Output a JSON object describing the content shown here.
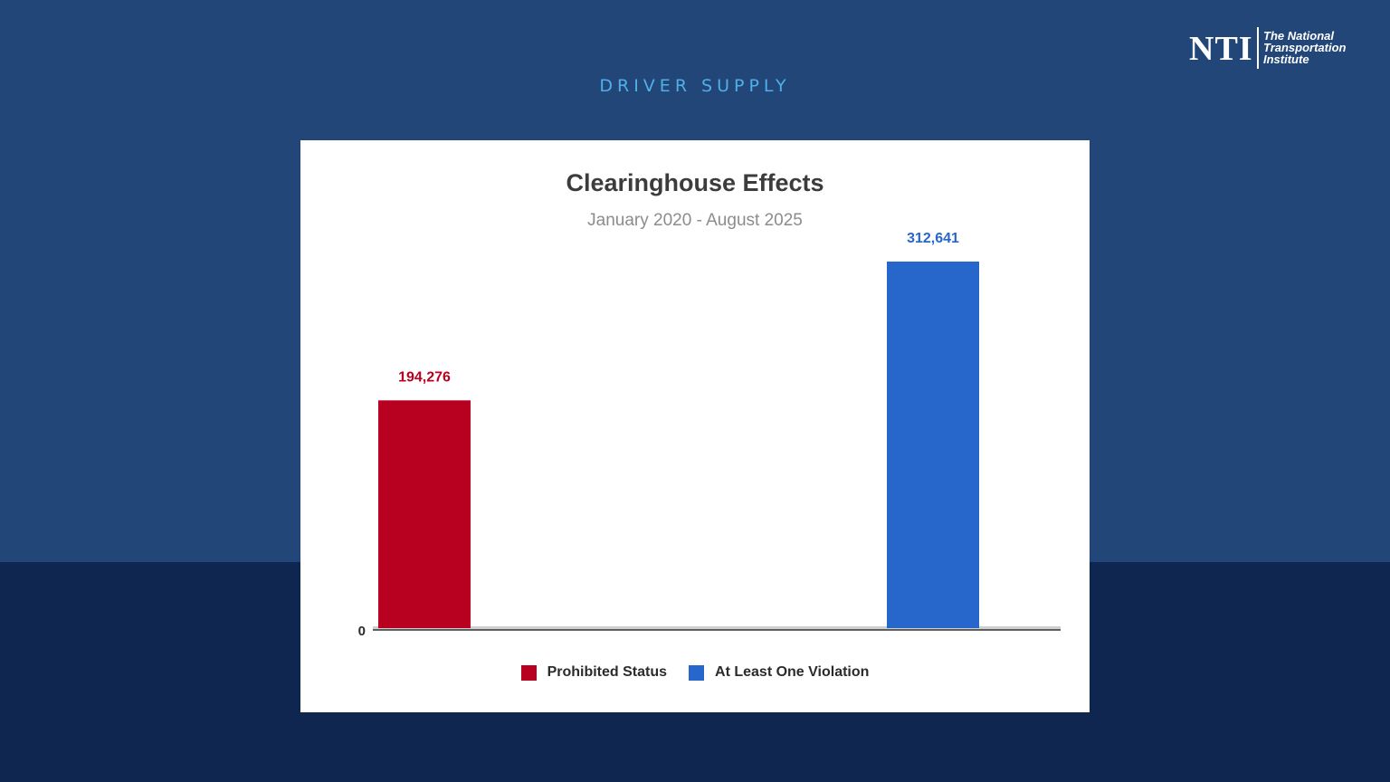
{
  "section": {
    "label": "DRIVER SUPPLY"
  },
  "logo": {
    "mark": "NTI",
    "lines": [
      "The National",
      "Transportation",
      "Institute"
    ]
  },
  "colors": {
    "background": "#234679",
    "band": "#0f2750",
    "accent": "#4fb0e6"
  },
  "chart_data": {
    "type": "bar",
    "title": "Clearinghouse Effects",
    "subtitle": "January 2020 - August 2025",
    "categories": [
      "Prohibited Status",
      "At Least One Violation"
    ],
    "series": [
      {
        "name": "Prohibited Status",
        "values": [
          194276,
          null
        ],
        "color": "#b80020",
        "value_label": "194,276"
      },
      {
        "name": "At Least One Violation",
        "values": [
          null,
          312641
        ],
        "color": "#2767cc",
        "value_label": "312,641"
      }
    ],
    "y_tick_labels": [
      "0"
    ],
    "ylim": [
      0,
      312641
    ],
    "grid": false,
    "legend_position": "bottom"
  }
}
